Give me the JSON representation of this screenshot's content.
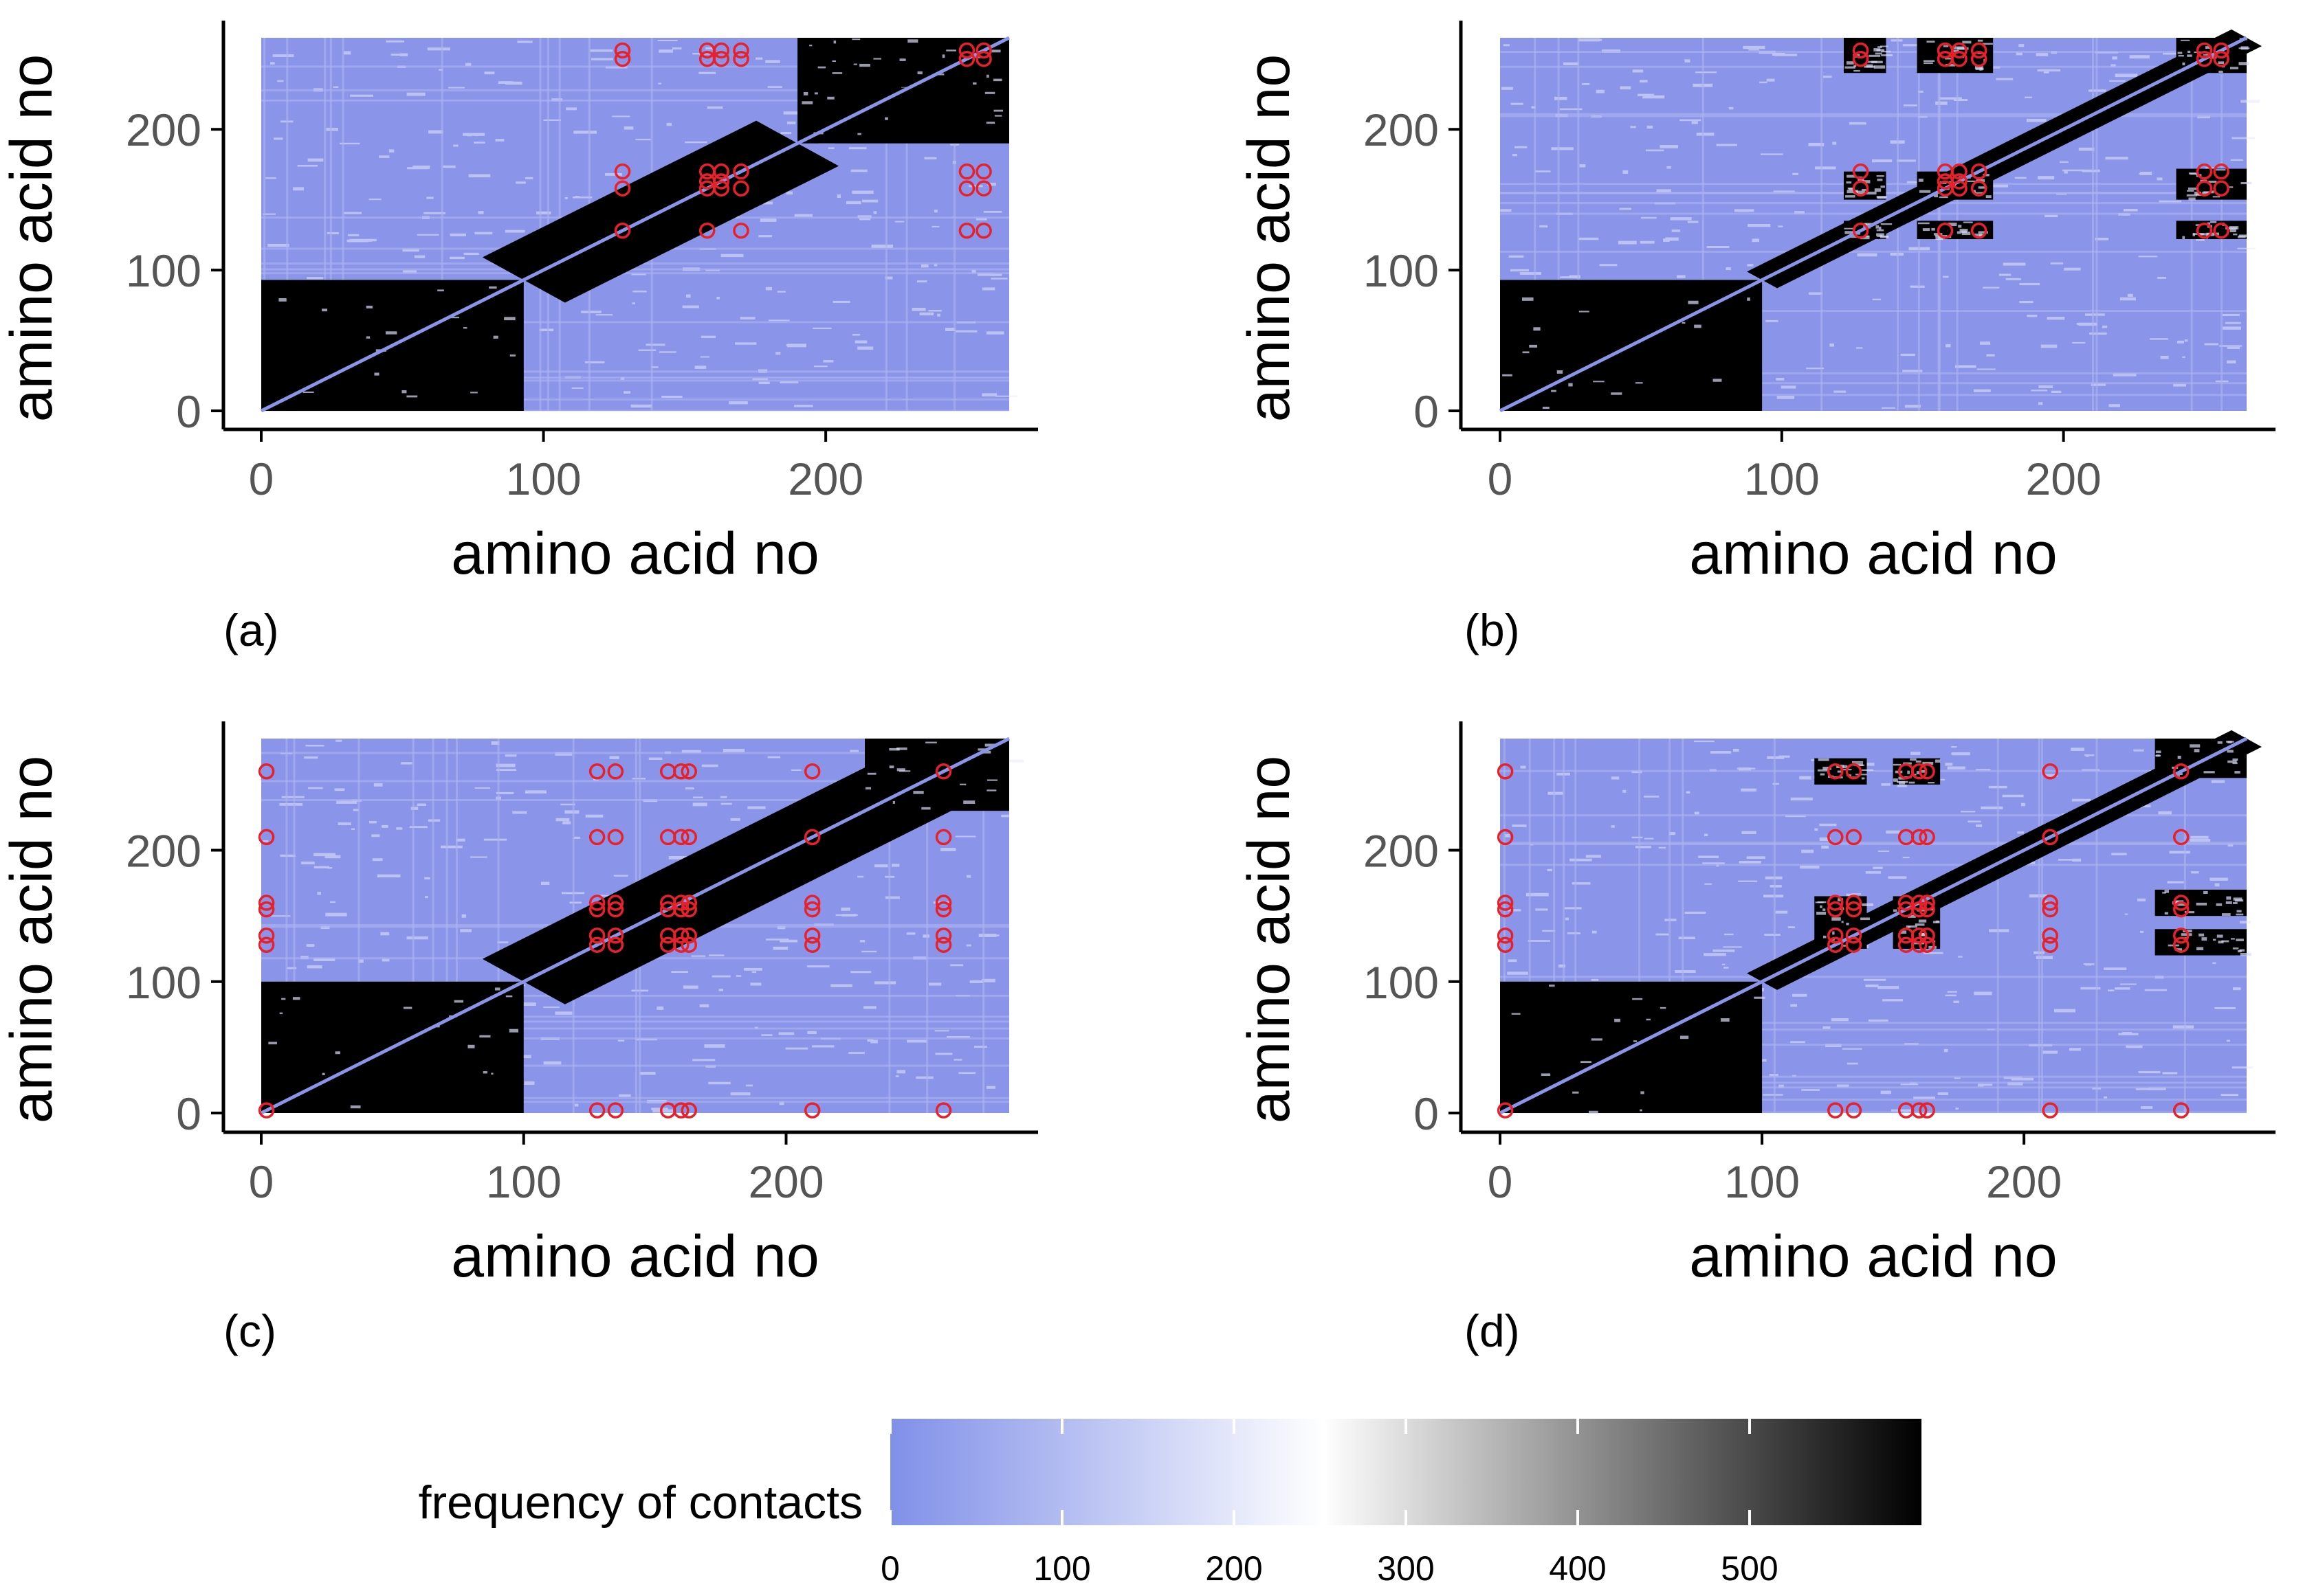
{
  "chart_data": [
    {
      "panel_label": "(a)",
      "type": "heatmap",
      "xlabel": "amino acid no",
      "ylabel": "amino acid no",
      "xticks": [
        "0",
        "100",
        "200"
      ],
      "yticks": [
        "0",
        "100",
        "200"
      ],
      "xlim": [
        0,
        265
      ],
      "ylim": [
        0,
        265
      ],
      "diagonal_line": [
        0,
        265
      ],
      "blocks": [
        {
          "x": [
            0,
            93
          ],
          "y": [
            0,
            93
          ],
          "level": 600
        },
        {
          "x": [
            93,
            190
          ],
          "y": [
            93,
            190
          ],
          "level": 600,
          "band": true
        },
        {
          "x": [
            190,
            265
          ],
          "y": [
            190,
            265
          ],
          "level": 600
        },
        {
          "x": [
            200,
            265
          ],
          "y": [
            230,
            265
          ],
          "level": 600
        }
      ],
      "contact_points": [
        [
          128,
          128
        ],
        [
          128,
          158
        ],
        [
          128,
          170
        ],
        [
          128,
          250
        ],
        [
          128,
          256
        ],
        [
          158,
          128
        ],
        [
          158,
          158
        ],
        [
          158,
          163
        ],
        [
          158,
          170
        ],
        [
          158,
          250
        ],
        [
          158,
          256
        ],
        [
          163,
          158
        ],
        [
          163,
          163
        ],
        [
          163,
          170
        ],
        [
          163,
          250
        ],
        [
          163,
          256
        ],
        [
          170,
          128
        ],
        [
          170,
          158
        ],
        [
          170,
          170
        ],
        [
          170,
          250
        ],
        [
          170,
          256
        ],
        [
          250,
          128
        ],
        [
          250,
          158
        ],
        [
          250,
          170
        ],
        [
          250,
          250
        ],
        [
          250,
          256
        ],
        [
          256,
          128
        ],
        [
          256,
          158
        ],
        [
          256,
          170
        ],
        [
          256,
          250
        ],
        [
          256,
          256
        ]
      ]
    },
    {
      "panel_label": "(b)",
      "type": "heatmap",
      "xlabel": "amino acid no",
      "ylabel": "amino acid no",
      "xticks": [
        "0",
        "100",
        "200"
      ],
      "yticks": [
        "0",
        "100",
        "200"
      ],
      "xlim": [
        0,
        265
      ],
      "ylim": [
        0,
        265
      ],
      "diagonal_line": [
        0,
        265
      ],
      "blocks": [
        {
          "x": [
            0,
            93
          ],
          "y": [
            0,
            93
          ],
          "level": 600
        },
        {
          "x": [
            93,
            265
          ],
          "y": [
            93,
            265
          ],
          "level": 600,
          "band": true,
          "thin": true
        },
        {
          "x": [
            122,
            137
          ],
          "y": [
            240,
            265
          ],
          "level": 600
        },
        {
          "x": [
            148,
            175
          ],
          "y": [
            240,
            265
          ],
          "level": 600
        },
        {
          "x": [
            122,
            137
          ],
          "y": [
            150,
            170
          ],
          "level": 600
        },
        {
          "x": [
            148,
            175
          ],
          "y": [
            150,
            170
          ],
          "level": 600
        },
        {
          "x": [
            122,
            137
          ],
          "y": [
            122,
            135
          ],
          "level": 600
        },
        {
          "x": [
            148,
            175
          ],
          "y": [
            122,
            135
          ],
          "level": 600
        },
        {
          "x": [
            240,
            265
          ],
          "y": [
            240,
            265
          ],
          "level": 600
        },
        {
          "x": [
            240,
            265
          ],
          "y": [
            150,
            172
          ],
          "level": 600
        },
        {
          "x": [
            240,
            265
          ],
          "y": [
            122,
            135
          ],
          "level": 600
        }
      ],
      "contact_points": [
        [
          128,
          128
        ],
        [
          128,
          158
        ],
        [
          128,
          170
        ],
        [
          128,
          250
        ],
        [
          128,
          256
        ],
        [
          158,
          128
        ],
        [
          158,
          158
        ],
        [
          158,
          163
        ],
        [
          158,
          170
        ],
        [
          158,
          250
        ],
        [
          158,
          256
        ],
        [
          163,
          158
        ],
        [
          163,
          163
        ],
        [
          163,
          170
        ],
        [
          163,
          250
        ],
        [
          163,
          256
        ],
        [
          170,
          128
        ],
        [
          170,
          158
        ],
        [
          170,
          170
        ],
        [
          170,
          250
        ],
        [
          170,
          256
        ],
        [
          250,
          128
        ],
        [
          250,
          158
        ],
        [
          250,
          170
        ],
        [
          250,
          250
        ],
        [
          250,
          256
        ],
        [
          256,
          128
        ],
        [
          256,
          158
        ],
        [
          256,
          170
        ],
        [
          256,
          250
        ],
        [
          256,
          256
        ]
      ]
    },
    {
      "panel_label": "(c)",
      "type": "heatmap",
      "xlabel": "amino acid no",
      "ylabel": "amino acid no",
      "xticks": [
        "0",
        "100",
        "200"
      ],
      "yticks": [
        "0",
        "100",
        "200"
      ],
      "xlim": [
        0,
        285
      ],
      "ylim": [
        0,
        285
      ],
      "diagonal_line": [
        0,
        285
      ],
      "blocks": [
        {
          "x": [
            0,
            100
          ],
          "y": [
            0,
            100
          ],
          "level": 600
        },
        {
          "x": [
            100,
            250
          ],
          "y": [
            100,
            250
          ],
          "level": 600,
          "band": true
        },
        {
          "x": [
            230,
            285
          ],
          "y": [
            230,
            285
          ],
          "level": 600
        }
      ],
      "contact_points": [
        [
          2,
          2
        ],
        [
          2,
          128
        ],
        [
          2,
          135
        ],
        [
          2,
          155
        ],
        [
          2,
          160
        ],
        [
          2,
          210
        ],
        [
          2,
          260
        ],
        [
          128,
          2
        ],
        [
          128,
          128
        ],
        [
          128,
          135
        ],
        [
          128,
          155
        ],
        [
          128,
          160
        ],
        [
          128,
          210
        ],
        [
          128,
          260
        ],
        [
          135,
          2
        ],
        [
          135,
          128
        ],
        [
          135,
          135
        ],
        [
          135,
          155
        ],
        [
          135,
          160
        ],
        [
          135,
          210
        ],
        [
          135,
          260
        ],
        [
          155,
          2
        ],
        [
          155,
          128
        ],
        [
          155,
          135
        ],
        [
          155,
          155
        ],
        [
          155,
          160
        ],
        [
          155,
          210
        ],
        [
          155,
          260
        ],
        [
          160,
          2
        ],
        [
          160,
          128
        ],
        [
          160,
          135
        ],
        [
          160,
          155
        ],
        [
          160,
          160
        ],
        [
          160,
          210
        ],
        [
          160,
          260
        ],
        [
          163,
          2
        ],
        [
          163,
          128
        ],
        [
          163,
          135
        ],
        [
          163,
          155
        ],
        [
          163,
          160
        ],
        [
          163,
          210
        ],
        [
          163,
          260
        ],
        [
          210,
          2
        ],
        [
          210,
          128
        ],
        [
          210,
          135
        ],
        [
          210,
          155
        ],
        [
          210,
          160
        ],
        [
          210,
          210
        ],
        [
          210,
          260
        ],
        [
          260,
          2
        ],
        [
          260,
          128
        ],
        [
          260,
          135
        ],
        [
          260,
          155
        ],
        [
          260,
          160
        ],
        [
          260,
          210
        ],
        [
          260,
          260
        ]
      ]
    },
    {
      "panel_label": "(d)",
      "type": "heatmap",
      "xlabel": "amino acid no",
      "ylabel": "amino acid no",
      "xticks": [
        "0",
        "100",
        "200"
      ],
      "yticks": [
        "0",
        "100",
        "200"
      ],
      "xlim": [
        0,
        285
      ],
      "ylim": [
        0,
        285
      ],
      "diagonal_line": [
        0,
        285
      ],
      "blocks": [
        {
          "x": [
            0,
            100
          ],
          "y": [
            0,
            100
          ],
          "level": 600
        },
        {
          "x": [
            100,
            285
          ],
          "y": [
            100,
            285
          ],
          "level": 600,
          "band": true,
          "thin": true
        },
        {
          "x": [
            120,
            140
          ],
          "y": [
            250,
            270
          ],
          "level": 600
        },
        {
          "x": [
            150,
            168
          ],
          "y": [
            250,
            270
          ],
          "level": 600
        },
        {
          "x": [
            120,
            140
          ],
          "y": [
            125,
            165
          ],
          "level": 600
        },
        {
          "x": [
            150,
            168
          ],
          "y": [
            125,
            165
          ],
          "level": 600
        },
        {
          "x": [
            250,
            285
          ],
          "y": [
            255,
            285
          ],
          "level": 600
        },
        {
          "x": [
            250,
            285
          ],
          "y": [
            150,
            170
          ],
          "level": 600
        },
        {
          "x": [
            250,
            285
          ],
          "y": [
            120,
            140
          ],
          "level": 600
        }
      ],
      "contact_points": [
        [
          2,
          2
        ],
        [
          2,
          128
        ],
        [
          2,
          135
        ],
        [
          2,
          155
        ],
        [
          2,
          160
        ],
        [
          2,
          210
        ],
        [
          2,
          260
        ],
        [
          128,
          2
        ],
        [
          128,
          128
        ],
        [
          128,
          135
        ],
        [
          128,
          155
        ],
        [
          128,
          160
        ],
        [
          128,
          210
        ],
        [
          128,
          260
        ],
        [
          135,
          2
        ],
        [
          135,
          128
        ],
        [
          135,
          135
        ],
        [
          135,
          155
        ],
        [
          135,
          160
        ],
        [
          135,
          210
        ],
        [
          135,
          260
        ],
        [
          155,
          2
        ],
        [
          155,
          128
        ],
        [
          155,
          135
        ],
        [
          155,
          155
        ],
        [
          155,
          160
        ],
        [
          155,
          210
        ],
        [
          155,
          260
        ],
        [
          160,
          2
        ],
        [
          160,
          128
        ],
        [
          160,
          135
        ],
        [
          160,
          155
        ],
        [
          160,
          160
        ],
        [
          160,
          210
        ],
        [
          160,
          260
        ],
        [
          163,
          2
        ],
        [
          163,
          128
        ],
        [
          163,
          135
        ],
        [
          163,
          155
        ],
        [
          163,
          160
        ],
        [
          163,
          210
        ],
        [
          163,
          260
        ],
        [
          210,
          2
        ],
        [
          210,
          128
        ],
        [
          210,
          135
        ],
        [
          210,
          155
        ],
        [
          210,
          160
        ],
        [
          210,
          210
        ],
        [
          210,
          260
        ],
        [
          260,
          2
        ],
        [
          260,
          128
        ],
        [
          260,
          135
        ],
        [
          260,
          155
        ],
        [
          260,
          160
        ],
        [
          260,
          210
        ],
        [
          260,
          260
        ]
      ]
    }
  ],
  "colorbar": {
    "title": "frequency of contacts",
    "ticks": [
      "0",
      "100",
      "200",
      "300",
      "400",
      "500"
    ],
    "range": [
      0,
      600
    ],
    "color_low": "#8090e8",
    "color_mid": "#ffffff",
    "color_high": "#000000",
    "mid_value": 250
  },
  "colors": {
    "background_fill": "#8a95e9",
    "contact_marker": "#e8202a",
    "diagonal": "#8a95e9",
    "axis": "#000000"
  }
}
